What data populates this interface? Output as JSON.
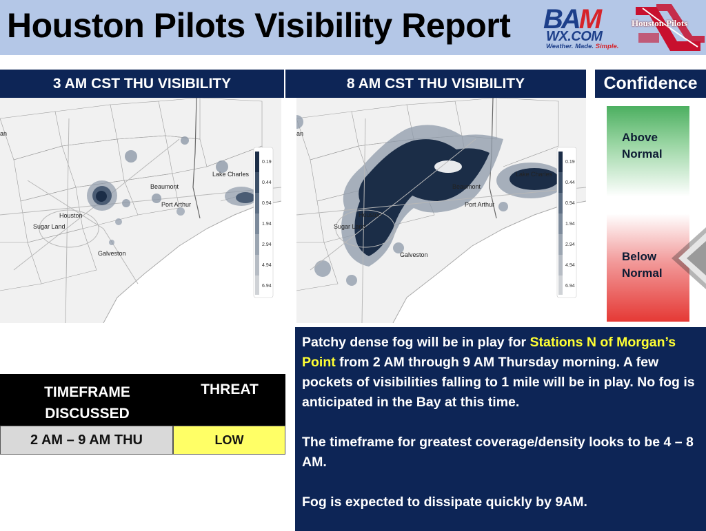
{
  "header": {
    "title": "Houston Pilots Visibility Report"
  },
  "logos": {
    "bam": {
      "main_left": "BA",
      "main_right": "M",
      "domain": "WX.COM",
      "tagline_prefix": "Weather. Made. ",
      "tagline_suffix": "Simple."
    },
    "houston_pilots": "Houston Pilots"
  },
  "panels": {
    "left_title": "3 AM CST THU VISIBILITY",
    "right_title": "8 AM CST THU VISIBILITY",
    "confidence_title": "Confidence"
  },
  "map_labels": {
    "lake_charles": "Lake Charles",
    "beaumont": "Beaumont",
    "port_arthur": "Port Arthur",
    "houston": "Houston",
    "sugar_land": "Sugar Land",
    "galveston": "Galveston",
    "edge_left": "an"
  },
  "visibility_scale": [
    "0.19",
    "0.44",
    "0.94",
    "1.94",
    "2.94",
    "4.94",
    "6.94"
  ],
  "confidence": {
    "above_line1": "Above",
    "above_line2": "Normal",
    "below_line1": "Below",
    "below_line2": "Normal",
    "level": "Below Normal"
  },
  "threat_table": {
    "col1_header_line1": "TIMEFRAME",
    "col1_header_line2": "DISCUSSED",
    "col2_header": "THREAT",
    "timeframe": "2 AM – 9 AM THU",
    "threat": "LOW"
  },
  "description": {
    "p1_part1": "Patchy dense fog will be in play for ",
    "p1_highlight": "Stations N of Morgan’s Point",
    "p1_part2": " from 2 AM through 9 AM Thursday morning. A few pockets of visibilities falling to 1 mile will be in play. No fog is anticipated in the Bay at this time.",
    "p2": "The timeframe for greatest coverage/density looks to be 4 – 8 AM.",
    "p3": "Fog is expected to dissipate quickly by 9AM."
  },
  "colors": {
    "header_bg": "#b4c7e7",
    "panel_navy": "#0d2556",
    "highlight_yellow": "#ffff33",
    "threat_low": "#ffff66",
    "fog_dark": "#1b2d47"
  }
}
